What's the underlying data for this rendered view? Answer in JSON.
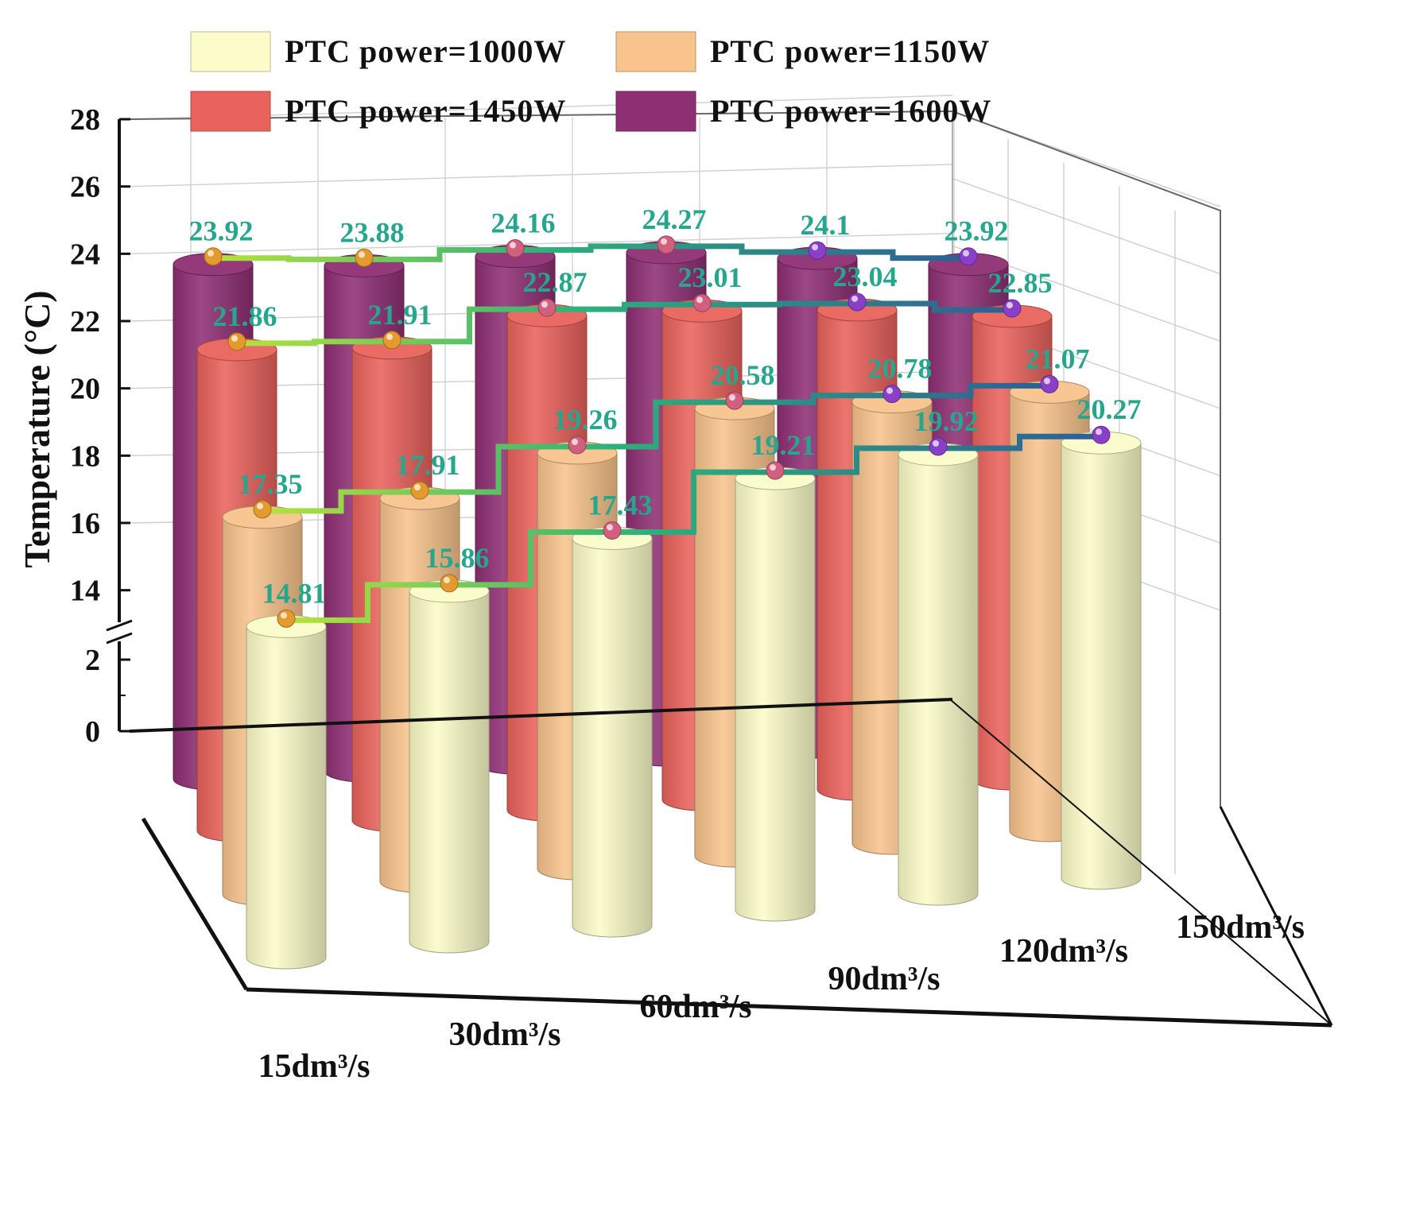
{
  "chart_data": {
    "type": "bar",
    "style": "3d-cylinder",
    "title": "",
    "xlabel": "",
    "ylabel": "Temperature (°C)",
    "y_axis_break": true,
    "ylim_lower": [
      0,
      3
    ],
    "ylim_upper": [
      13,
      28
    ],
    "yticks_lower": [
      0,
      2
    ],
    "yticks_upper": [
      14,
      16,
      18,
      20,
      22,
      24,
      26,
      28
    ],
    "categories": [
      "15dm³/s",
      "30dm³/s",
      "60dm³/s",
      "90dm³/s",
      "120dm³/s",
      "150dm³/s"
    ],
    "series": [
      {
        "name": "PTC power=1000W",
        "color": "#fbfcc8",
        "values": [
          14.81,
          15.86,
          17.43,
          19.21,
          19.92,
          20.27
        ]
      },
      {
        "name": "PTC power=1150W",
        "color": "#f8c38c",
        "values": [
          17.35,
          17.91,
          19.26,
          20.58,
          20.78,
          21.07
        ]
      },
      {
        "name": "PTC power=1450W",
        "color": "#e9625c",
        "values": [
          21.86,
          21.91,
          22.87,
          23.01,
          23.04,
          22.85
        ]
      },
      {
        "name": "PTC power=1600W",
        "color": "#8e2f73",
        "values": [
          23.92,
          23.88,
          24.16,
          24.27,
          24.1,
          23.92
        ]
      }
    ],
    "legend_position": "top-left",
    "grid": true,
    "label_color": "#27a68e"
  }
}
